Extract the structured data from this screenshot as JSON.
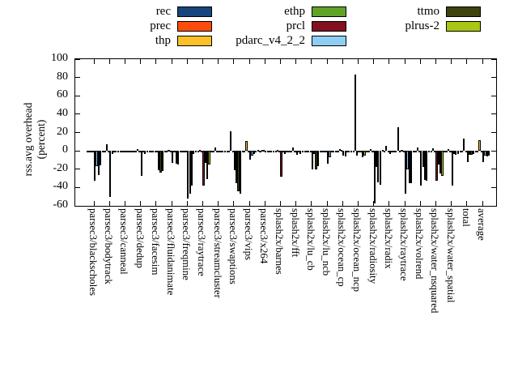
{
  "axis": {
    "ylabel_lines": [
      "rss.avg overhead",
      "(percent)"
    ]
  },
  "chart_data": {
    "type": "bar",
    "title": "",
    "ylabel": "rss.avg overhead (percent)",
    "ylim": [
      -60,
      100
    ],
    "yticks": [
      100,
      80,
      60,
      40,
      20,
      0,
      -20,
      -40,
      -60
    ],
    "grid": false,
    "legend_position": "top-center-3-columns",
    "legend_columns": [
      [
        0,
        1,
        2
      ],
      [
        3,
        4,
        5
      ],
      [
        6,
        7
      ]
    ],
    "categories": [
      "parsec3/blackscholes",
      "parsec3/bodytrack",
      "parsec3/canneal",
      "parsec3/dedup",
      "parsec3/facesim",
      "parsec3/fluidanimate",
      "parsec3/freqmine",
      "parsec3/raytrace",
      "parsec3/streamcluster",
      "parsec3/swaptions",
      "parsec3/vips",
      "parsec3/x264",
      "splash2x/barnes",
      "splash2x/fft",
      "splash2x/lu_cb",
      "splash2x/lu_ncb",
      "splash2x/ocean_cp",
      "splash2x/ocean_ncp",
      "splash2x/radiosity",
      "splash2x/radix",
      "splash2x/raytrace",
      "splash2x/volrend",
      "splash2x/water_nsquared",
      "splash2x/water_spatial",
      "total",
      "average"
    ],
    "series": [
      {
        "name": "rec",
        "color": "#17457e",
        "values": [
          -1,
          -1,
          -1,
          -1,
          -1,
          -1,
          -1,
          -1,
          -1,
          -1,
          -1,
          0,
          -1,
          -1,
          -1,
          -1,
          -1,
          -1,
          -1,
          1,
          26,
          -1,
          -1,
          -1,
          -1,
          -1
        ]
      },
      {
        "name": "prec",
        "color": "#fd4d0c",
        "values": [
          -2,
          -1,
          -1,
          -2,
          -1,
          -1,
          -2,
          -1,
          -1,
          -2,
          -1,
          -1,
          -1,
          -1,
          -1,
          -1,
          -1,
          -1,
          -2,
          -1,
          -1,
          -1,
          -1,
          -1,
          -1,
          -1
        ]
      },
      {
        "name": "thp",
        "color": "#fdc029",
        "values": [
          -1,
          7,
          -1,
          2,
          -1,
          1,
          -1,
          1,
          4,
          21,
          11,
          1,
          1,
          4,
          -1,
          -1,
          2,
          83,
          2,
          5,
          1,
          4,
          3,
          2,
          13,
          12
        ]
      },
      {
        "name": "ethp",
        "color": "#61a327",
        "values": [
          -2,
          -1,
          -1,
          -1,
          -1,
          -1,
          -2,
          -1,
          -1,
          -1,
          -1,
          1,
          -1,
          -1,
          -1,
          -1,
          1,
          -5,
          -1,
          -1,
          -2,
          -1,
          -1,
          -1,
          -1,
          -1
        ]
      },
      {
        "name": "prcl",
        "color": "#82101f",
        "values": [
          -33,
          -50,
          -2,
          -27,
          -2,
          -13,
          -52,
          -38,
          -2,
          -21,
          -10,
          -2,
          -28,
          -4,
          -20,
          -14,
          -5,
          -2,
          -57,
          -3,
          -47,
          -38,
          -33,
          -38,
          -12,
          -12
        ]
      },
      {
        "name": "pdarc_v4_2_2",
        "color": "#8ecef5",
        "values": [
          -17,
          -3,
          -1,
          -2,
          -21,
          -2,
          -47,
          -13,
          -1,
          -35,
          -5,
          -1,
          -2,
          -2,
          -3,
          -7,
          -6,
          -1,
          -18,
          -2,
          -20,
          -18,
          -15,
          -3,
          -4,
          -5
        ]
      },
      {
        "name": "ttmo",
        "color": "#3f430f",
        "values": [
          -26,
          -2,
          -2,
          -3,
          -24,
          -14,
          -38,
          -31,
          -2,
          -44,
          -3,
          -1,
          -3,
          -3,
          -20,
          -2,
          -2,
          -7,
          -34,
          -1,
          -35,
          -32,
          -25,
          -4,
          -4,
          -6
        ]
      },
      {
        "name": "plrus-2",
        "color": "#a8c614",
        "values": [
          -16,
          -2,
          -2,
          -2,
          -22,
          -15,
          -3,
          -15,
          -2,
          -47,
          -2,
          -1,
          -2,
          -2,
          -17,
          -2,
          -2,
          -5,
          -37,
          -2,
          -35,
          -33,
          -27,
          -3,
          -3,
          -5
        ]
      }
    ]
  }
}
